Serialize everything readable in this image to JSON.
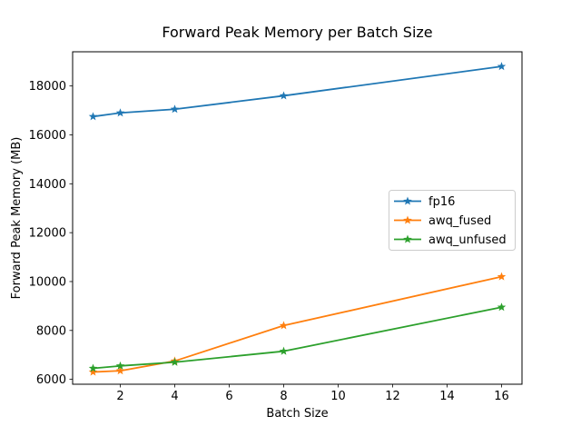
{
  "figure": {
    "background": "#ffffff",
    "text_color": "#000000",
    "spine_color": "#000000",
    "legend_border_color": "#cccccc"
  },
  "chart_data": {
    "type": "line",
    "title": "Forward Peak Memory per Batch Size",
    "xlabel": "Batch Size",
    "ylabel": "Forward Peak Memory (MB)",
    "x": [
      1,
      2,
      4,
      8,
      16
    ],
    "series": [
      {
        "name": "fp16",
        "color": "#1f77b4",
        "marker": "star",
        "values": [
          16750,
          16900,
          17050,
          17600,
          18800
        ]
      },
      {
        "name": "awq_fused",
        "color": "#ff7f0e",
        "marker": "star",
        "values": [
          6300,
          6350,
          6750,
          8200,
          10200
        ]
      },
      {
        "name": "awq_unfused",
        "color": "#2ca02c",
        "marker": "star",
        "values": [
          6450,
          6550,
          6700,
          7150,
          8950
        ]
      }
    ],
    "x_ticks": [
      2,
      4,
      6,
      8,
      10,
      12,
      14,
      16
    ],
    "y_ticks": [
      6000,
      8000,
      10000,
      12000,
      14000,
      16000,
      18000
    ],
    "xlim": [
      0.25,
      16.75
    ],
    "ylim": [
      5800,
      19400
    ],
    "grid": false,
    "legend_position": "center-right"
  }
}
